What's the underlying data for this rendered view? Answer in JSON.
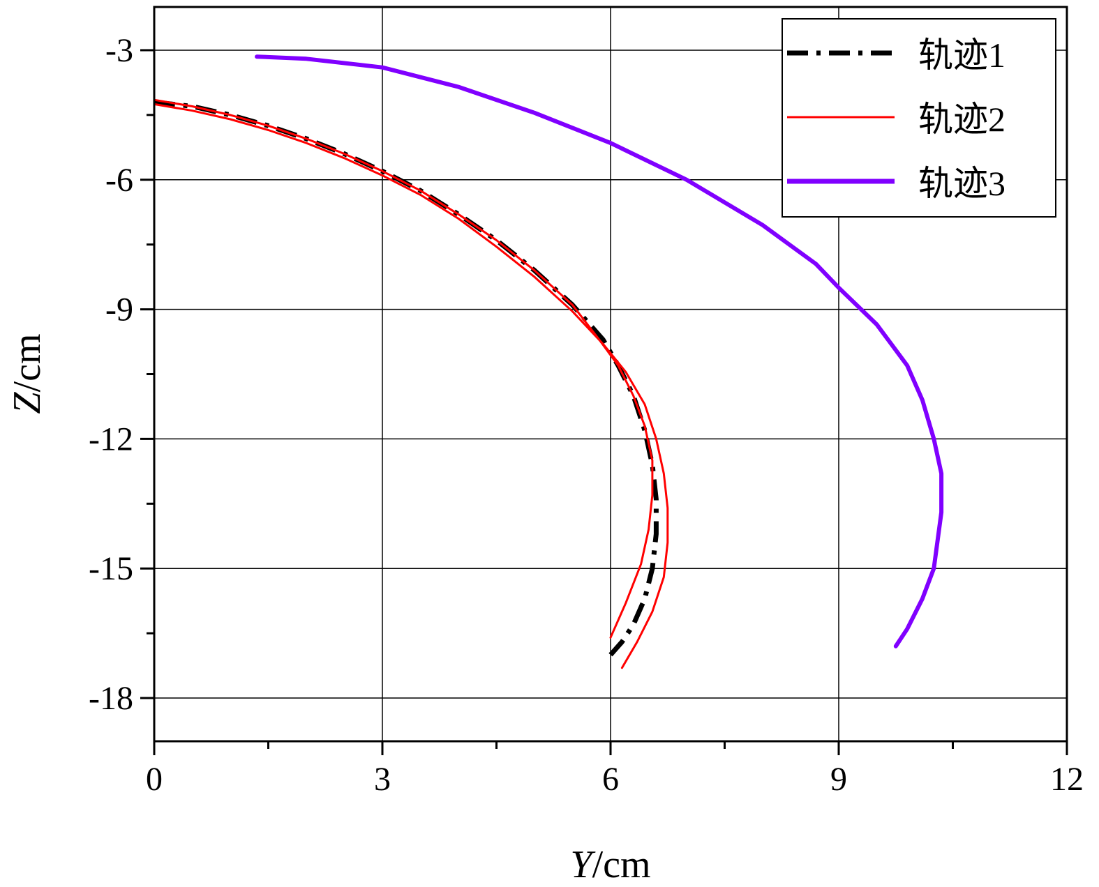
{
  "chart_data": {
    "type": "line",
    "title": "",
    "xlabel": {
      "var": "Y",
      "unit": "/cm"
    },
    "ylabel": {
      "var": "Z",
      "unit": "/cm"
    },
    "xlim": [
      0,
      12
    ],
    "ylim": [
      -19,
      -2
    ],
    "xticks": [
      0,
      3,
      6,
      9,
      12
    ],
    "xtick_labels": [
      "0",
      "3",
      "6",
      "9",
      "12"
    ],
    "yticks": [
      -3,
      -6,
      -9,
      -12,
      -15,
      -18
    ],
    "ytick_labels": [
      "-3",
      "-6",
      "-9",
      "-12",
      "-15",
      "-18"
    ],
    "grid": true,
    "legend_position": "top-right",
    "series": [
      {
        "name": "轨迹1",
        "color": "#000000",
        "style": "dash-dot",
        "x": [
          0.0,
          0.5,
          1.0,
          1.5,
          2.0,
          2.5,
          3.0,
          3.5,
          4.0,
          4.5,
          5.0,
          5.5,
          5.9,
          6.1,
          6.3,
          6.45,
          6.55,
          6.6,
          6.6,
          6.55,
          6.45,
          6.3,
          6.15,
          6.0
        ],
        "y": [
          -4.2,
          -4.3,
          -4.5,
          -4.75,
          -5.05,
          -5.4,
          -5.8,
          -6.25,
          -6.8,
          -7.4,
          -8.1,
          -8.9,
          -9.7,
          -10.3,
          -11.0,
          -11.8,
          -12.6,
          -13.4,
          -14.2,
          -15.0,
          -15.7,
          -16.3,
          -16.7,
          -17.0
        ]
      },
      {
        "name": "轨迹2",
        "color": "#ff0000",
        "style": "solid",
        "x": [
          0.0,
          0.5,
          1.0,
          1.5,
          2.0,
          2.5,
          3.0,
          3.5,
          4.0,
          4.5,
          5.0,
          5.5,
          5.85,
          6.1,
          6.3,
          6.45,
          6.55,
          6.55,
          6.5,
          6.4,
          6.2,
          6.0
        ],
        "y": [
          -4.15,
          -4.3,
          -4.5,
          -4.75,
          -5.05,
          -5.4,
          -5.8,
          -6.25,
          -6.8,
          -7.4,
          -8.1,
          -8.9,
          -9.7,
          -10.3,
          -11.0,
          -11.7,
          -12.5,
          -13.3,
          -14.1,
          -14.9,
          -15.8,
          -16.6
        ]
      },
      {
        "name": "轨迹2",
        "color": "#ff0000",
        "style": "solid",
        "x": [
          0.0,
          0.5,
          1.0,
          1.5,
          2.0,
          2.5,
          3.0,
          3.5,
          4.0,
          4.5,
          5.0,
          5.5,
          5.9,
          6.2,
          6.45,
          6.6,
          6.7,
          6.75,
          6.75,
          6.7,
          6.55,
          6.35,
          6.15
        ],
        "y": [
          -4.25,
          -4.4,
          -4.6,
          -4.85,
          -5.15,
          -5.5,
          -5.9,
          -6.35,
          -6.9,
          -7.55,
          -8.25,
          -9.05,
          -9.8,
          -10.45,
          -11.2,
          -12.0,
          -12.8,
          -13.6,
          -14.4,
          -15.2,
          -16.0,
          -16.7,
          -17.3
        ]
      },
      {
        "name": "轨迹3",
        "color": "#8000ff",
        "style": "solid",
        "x": [
          1.35,
          2.0,
          3.0,
          4.0,
          5.0,
          6.0,
          7.0,
          8.0,
          8.7,
          9.0,
          9.5,
          9.9,
          10.1,
          10.25,
          10.35,
          10.35,
          10.25,
          10.1,
          9.9,
          9.75
        ],
        "y": [
          -3.15,
          -3.2,
          -3.4,
          -3.85,
          -4.45,
          -5.15,
          -6.0,
          -7.05,
          -7.95,
          -8.5,
          -9.35,
          -10.3,
          -11.1,
          -12.0,
          -12.8,
          -13.7,
          -15.0,
          -15.7,
          -16.4,
          -16.8
        ]
      }
    ]
  }
}
